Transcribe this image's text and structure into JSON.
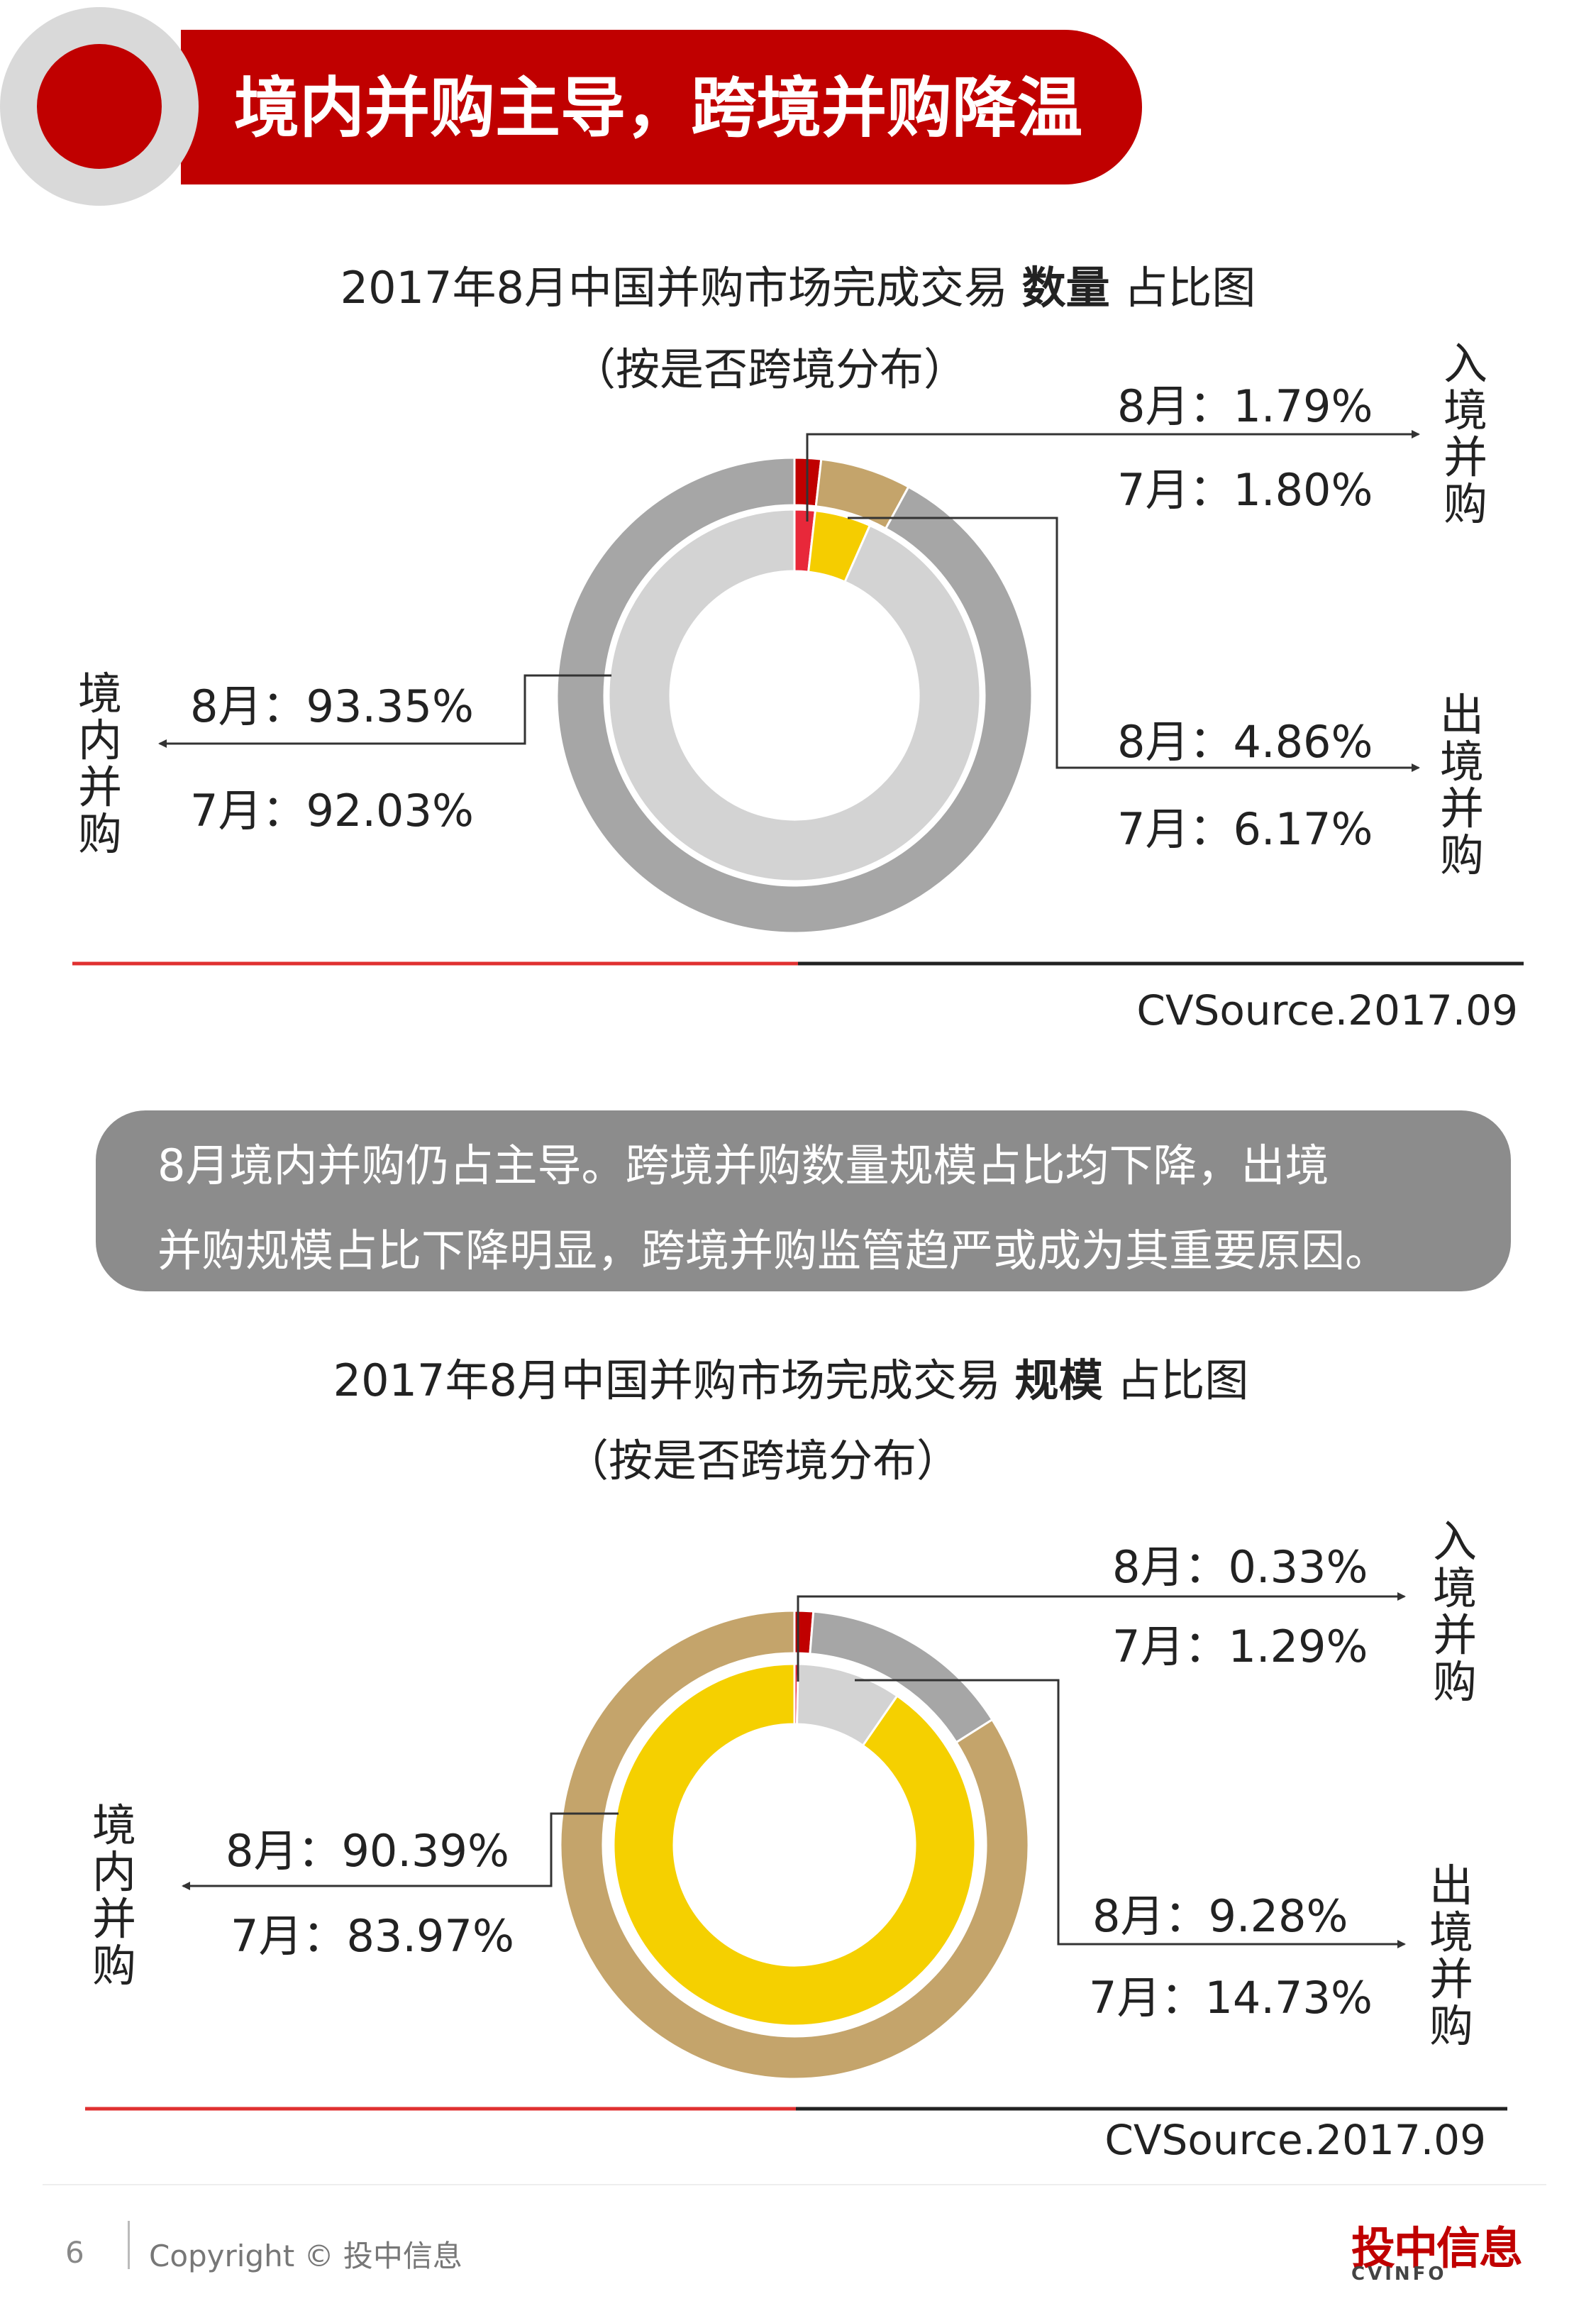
{
  "header": {
    "title": "境内并购主导，跨境并购降温"
  },
  "charts_meta": [
    {
      "title_pre": "2017年8月中国并购市场完成交易 ",
      "title_bold": "数量",
      "title_post": " 占比图",
      "subtitle": "（按是否跨境分布）",
      "source": "CVSource.2017.09",
      "inbound_label": "入境并购",
      "outbound_label": "出境并购",
      "domestic_label": "境内并购",
      "inbound_aug": "8月：1.79%",
      "inbound_jul": "7月：1.80%",
      "outbound_aug": "8月：4.86%",
      "outbound_jul": "7月：6.17%",
      "domestic_aug": "8月：93.35%",
      "domestic_jul": "7月：92.03%"
    },
    {
      "title_pre": "2017年8月中国并购市场完成交易 ",
      "title_bold": "规模",
      "title_post": " 占比图",
      "subtitle": "（按是否跨境分布）",
      "source": "CVSource.2017.09",
      "inbound_label": "入境并购",
      "outbound_label": "出境并购",
      "domestic_label": "境内并购",
      "inbound_aug": "8月：0.33%",
      "inbound_jul": "7月：1.29%",
      "outbound_aug": "8月：9.28%",
      "outbound_jul": "7月：14.73%",
      "domestic_aug": "8月：90.39%",
      "domestic_jul": "7月：83.97%"
    }
  ],
  "note": {
    "line1": "8月境内并购仍占主导。跨境并购数量规模占比均下降，出境",
    "line2": "并购规模占比下降明显，跨境并购监管趋严或成为其重要原因。"
  },
  "footer": {
    "page": "6",
    "copyright": "Copyright © 投中信息",
    "logo": "投中信息",
    "logo_sub": "CVINFO"
  },
  "chart_data": [
    {
      "type": "donut",
      "categories": [
        "入境并购",
        "出境并购",
        "境内并购"
      ],
      "series": [
        {
          "name": "8月",
          "ring": "inner",
          "values": [
            1.79,
            4.86,
            93.35
          ],
          "colors": [
            "#e8283a",
            "#f5cd00",
            "#d3d3d3"
          ]
        },
        {
          "name": "7月",
          "ring": "outer",
          "values": [
            1.8,
            6.17,
            92.03
          ],
          "colors": [
            "#c00000",
            "#c4a46b",
            "#a6a6a6"
          ]
        }
      ]
    },
    {
      "type": "donut",
      "categories": [
        "入境并购",
        "出境并购",
        "境内并购"
      ],
      "series": [
        {
          "name": "8月",
          "ring": "inner",
          "values": [
            0.33,
            9.28,
            90.39
          ],
          "colors": [
            "#e8283a",
            "#d3d3d3",
            "#f5d000"
          ]
        },
        {
          "name": "7月",
          "ring": "outer",
          "values": [
            1.29,
            14.73,
            83.97
          ],
          "colors": [
            "#c00000",
            "#a6a6a6",
            "#c4a46b"
          ]
        }
      ]
    }
  ]
}
